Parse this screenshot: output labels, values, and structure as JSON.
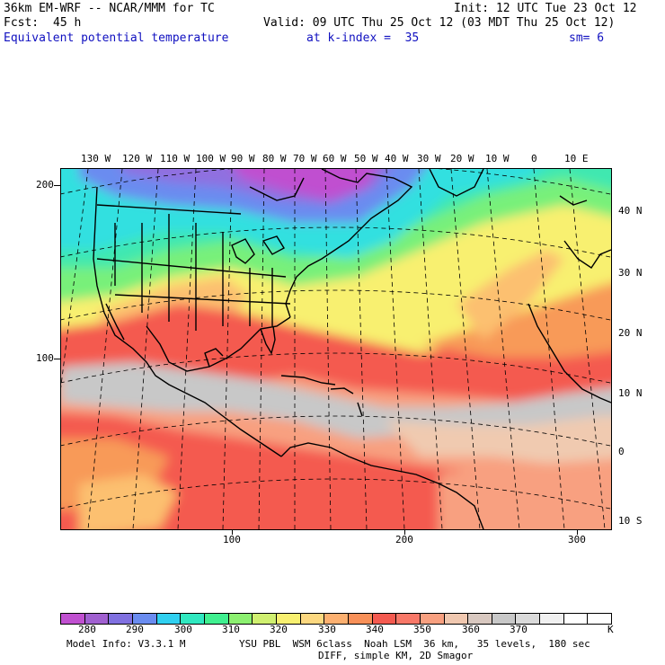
{
  "header": {
    "model": "36km EM-WRF -- NCAR/MMM for TC",
    "init": "Init: 12 UTC Tue 23 Oct 12",
    "fcst_label": "Fcst:",
    "fcst_value": "45 h",
    "valid": "Valid: 09 UTC Thu 25 Oct 12 (03 MDT Thu 25 Oct 12)",
    "field": "Equivalent potential temperature",
    "level": "at k-index =  35",
    "smoothing": "sm= 6"
  },
  "map": {
    "lon_labels": [
      "130 W",
      "120 W",
      "110 W",
      "100 W",
      "90 W",
      "80 W",
      "70 W",
      "60 W",
      "50 W",
      "40 W",
      "30 W",
      "20 W",
      "10 W",
      "0",
      "10 E"
    ],
    "lat_labels": [
      "40 N",
      "30 N",
      "20 N",
      "10 N",
      "0",
      "10 S"
    ],
    "grid_y_labels": [
      "200",
      "100"
    ],
    "grid_x_labels": [
      "100",
      "200",
      "300"
    ],
    "colors": {
      "purple": "#c050d0",
      "violet": "#9070e0",
      "blue": "#6a8cf0",
      "cyan": "#30e0e0",
      "teal": "#40e8b0",
      "green": "#78f07a",
      "lime": "#c0f070",
      "yellow": "#f8f070",
      "orange_light": "#fcc070",
      "orange": "#f89a58",
      "red": "#f45a50",
      "salmon": "#f8a080",
      "peach": "#f0cab0",
      "gray": "#c8c8c8",
      "land_line": "#000000"
    }
  },
  "colorbar": {
    "colors": [
      "#c050d0",
      "#a060d0",
      "#8070e0",
      "#6a8cf0",
      "#30d0f0",
      "#30e8c0",
      "#40f090",
      "#8cf070",
      "#d0f070",
      "#f8f070",
      "#fcd880",
      "#fcb070",
      "#f89058",
      "#f45a50",
      "#f87868",
      "#f8a080",
      "#f0c8b0",
      "#d8c8c0",
      "#c8c8c8",
      "#dadada",
      "#f0f0f0",
      "#ffffff",
      "#ffffff"
    ],
    "labels": [
      "280",
      "290",
      "300",
      "310",
      "320",
      "330",
      "340",
      "350",
      "360",
      "370"
    ],
    "unit": "K"
  },
  "footer": {
    "line1_left": "Model Info: V3.3.1 M",
    "line1_right": "YSU PBL  WSM 6class  Noah LSM  36 km,   35 levels,  180 sec",
    "line2": "DIFF, simple KM, 2D Smagor"
  }
}
